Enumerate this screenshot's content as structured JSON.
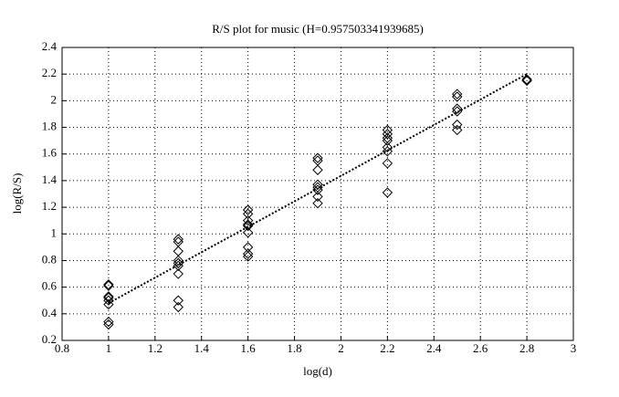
{
  "chart_data": {
    "type": "scatter",
    "title": "R/S plot for music (H=0.957503341939685)",
    "x_label": "log(d)",
    "y_label": "log(R/S)",
    "xlim": [
      0.8,
      3
    ],
    "xticks": [
      0.8,
      1,
      1.2,
      1.4,
      1.6,
      1.8,
      2,
      2.2,
      2.4,
      2.6,
      2.8,
      3
    ],
    "ylim": [
      0.2,
      2.4
    ],
    "yticks": [
      0.2,
      0.4,
      0.6,
      0.8,
      1,
      1.2,
      1.4,
      1.6,
      1.8,
      2,
      2.2,
      2.4
    ],
    "grid": true,
    "marker": "diamond",
    "color": "#000000",
    "series": [
      {
        "color": "#000000",
        "x": [
          1,
          1,
          1,
          1,
          1,
          1,
          1,
          1,
          1.3,
          1.3,
          1.3,
          1.3,
          1.3,
          1.3,
          1.3,
          1.3,
          1.3,
          1.6,
          1.6,
          1.6,
          1.6,
          1.6,
          1.6,
          1.6,
          1.6,
          1.6,
          1.9,
          1.9,
          1.9,
          1.9,
          1.9,
          1.9,
          1.9,
          1.9,
          2.2,
          2.2,
          2.2,
          2.2,
          2.2,
          2.2,
          2.2,
          2.2,
          2.5,
          2.5,
          2.5,
          2.5,
          2.5,
          2.5,
          2.8,
          2.8
        ],
        "values": [
          0.62,
          0.61,
          0.53,
          0.52,
          0.5,
          0.47,
          0.34,
          0.32,
          0.96,
          0.94,
          0.87,
          0.8,
          0.78,
          0.76,
          0.7,
          0.5,
          0.45,
          1.18,
          1.15,
          1.1,
          1.07,
          1.06,
          1.01,
          0.9,
          0.85,
          0.83,
          1.57,
          1.55,
          1.48,
          1.37,
          1.35,
          1.33,
          1.28,
          1.23,
          1.78,
          1.75,
          1.72,
          1.7,
          1.65,
          1.62,
          1.53,
          1.31,
          2.05,
          2.03,
          1.94,
          1.92,
          1.82,
          1.78,
          2.16,
          2.15
        ]
      }
    ],
    "fit": {
      "x": [
        1,
        2.8
      ],
      "values": [
        0.48,
        2.2
      ]
    }
  }
}
